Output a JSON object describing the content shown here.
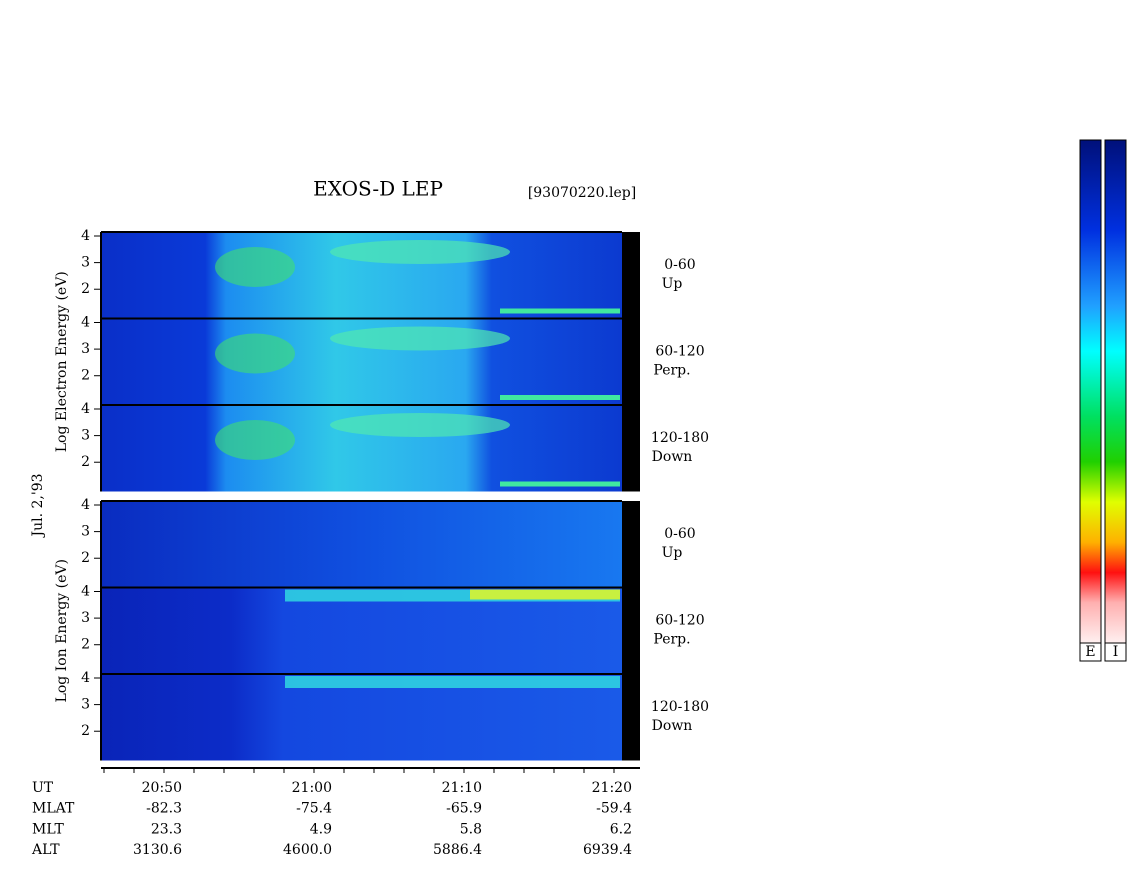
{
  "title": "EXOS-D LEP",
  "file": "[93070220.lep]",
  "date": "Jul. 2,'93",
  "energy_axis": {
    "ylim": [
      0.9,
      4.15
    ],
    "yticks": [
      4,
      3,
      2
    ]
  },
  "groups": [
    {
      "species_label": "Log  Electron  Energy (eV)",
      "panels": [
        {
          "angle": "0-60",
          "direction": "Up"
        },
        {
          "angle": "60-120",
          "direction": "Perp."
        },
        {
          "angle": "120-180",
          "direction": "Down"
        }
      ]
    },
    {
      "species_label": "Log  Ion  Energy (eV)",
      "panels": [
        {
          "angle": "0-60",
          "direction": "Up"
        },
        {
          "angle": "60-120",
          "direction": "Perp."
        },
        {
          "angle": "120-180",
          "direction": "Down"
        }
      ]
    }
  ],
  "orbit_table": [
    {
      "label": "UT",
      "values": [
        "20:50",
        "21:00",
        "21:10",
        "21:20"
      ]
    },
    {
      "label": "MLAT",
      "values": [
        "-82.3",
        "-75.4",
        "-65.9",
        "-59.4"
      ]
    },
    {
      "label": "MLT",
      "values": [
        "23.3",
        "4.9",
        "5.8",
        "6.2"
      ]
    },
    {
      "label": "ALT",
      "values": [
        "3130.6",
        "4600.0",
        "5886.4",
        "6939.4"
      ]
    }
  ],
  "colorbars": [
    "E",
    "I"
  ]
}
